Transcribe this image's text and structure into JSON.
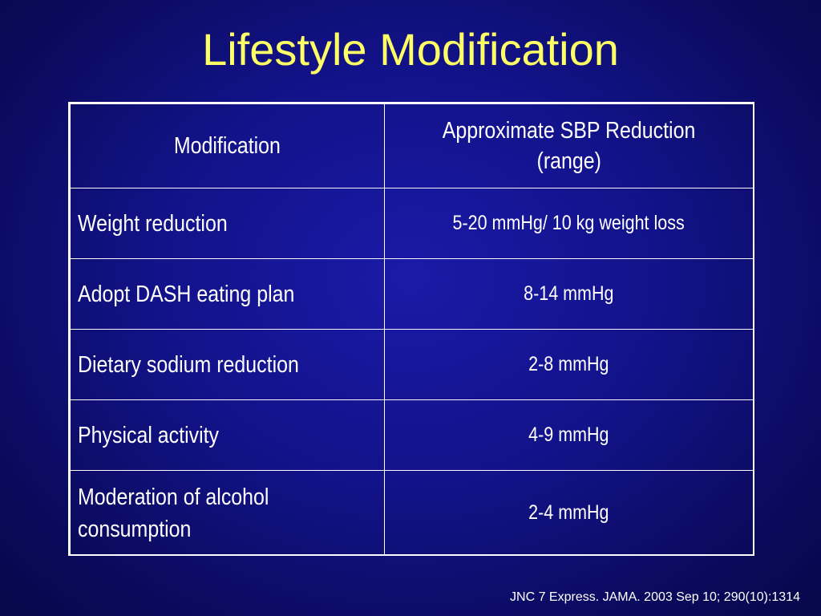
{
  "slide": {
    "title": "Lifestyle Modification",
    "citation": "JNC 7 Express. JAMA. 2003 Sep 10; 290(10):1314"
  },
  "table": {
    "headers": {
      "modification": "Modification",
      "reduction_line1": "Approximate SBP Reduction",
      "reduction_line2": "(range)"
    },
    "rows": [
      {
        "modification": "Weight reduction",
        "reduction": "5-20 mmHg/ 10 kg weight loss"
      },
      {
        "modification": "Adopt DASH eating plan",
        "reduction": "8-14 mmHg"
      },
      {
        "modification": "Dietary sodium reduction",
        "reduction": "2-8 mmHg"
      },
      {
        "modification": "Physical activity",
        "reduction": "4-9 mmHg"
      },
      {
        "modification_line1": "Moderation of alcohol",
        "modification_line2": "consumption",
        "reduction": "2-4 mmHg"
      }
    ]
  },
  "colors": {
    "background": "#121288",
    "title": "#ffff66",
    "text": "#ffffff",
    "border": "#ffffff"
  }
}
